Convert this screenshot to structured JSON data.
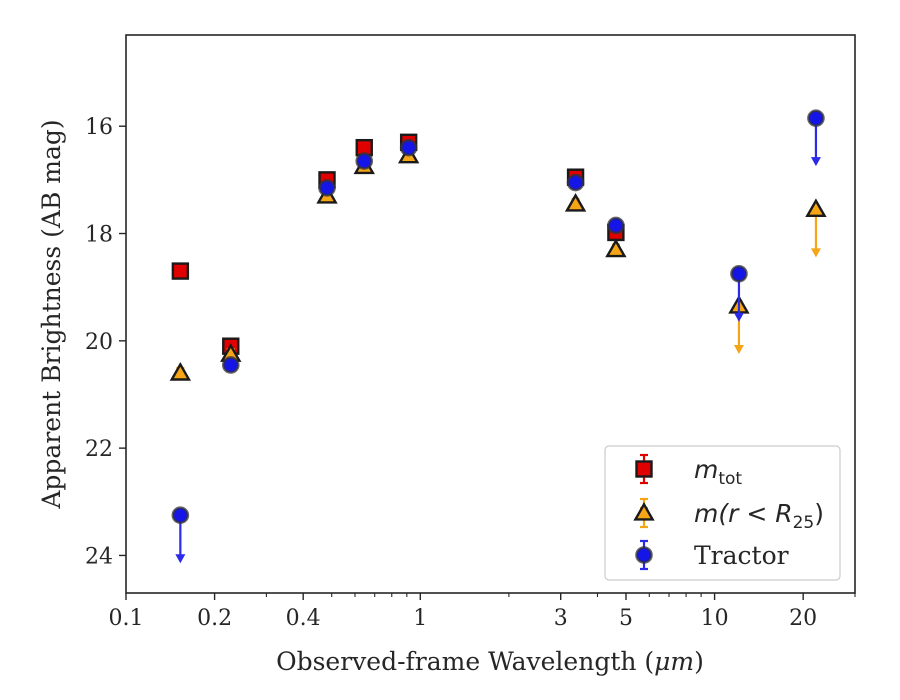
{
  "chart_data": {
    "type": "scatter",
    "title": "",
    "xlabel": "Observed-frame Wavelength (",
    "xlabel_unit": "μm",
    "xlabel_close": ")",
    "ylabel": "Apparent Brightness (AB mag)",
    "x_scale": "log",
    "xlim": [
      0.1,
      30
    ],
    "ylim": [
      14.3,
      24.7
    ],
    "y_inverted": true,
    "grid": false,
    "legend_placement": "lower-right",
    "x_ticks": [
      {
        "value": 0.1,
        "label": "0.1"
      },
      {
        "value": 0.2,
        "label": "0.2"
      },
      {
        "value": 0.4,
        "label": "0.4"
      },
      {
        "value": 1,
        "label": "1"
      },
      {
        "value": 3,
        "label": "3"
      },
      {
        "value": 5,
        "label": "5"
      },
      {
        "value": 10,
        "label": "10"
      },
      {
        "value": 20,
        "label": "20"
      }
    ],
    "y_ticks": [
      {
        "value": 16,
        "label": "16"
      },
      {
        "value": 18,
        "label": "18"
      },
      {
        "value": 20,
        "label": "20"
      },
      {
        "value": 22,
        "label": "22"
      },
      {
        "value": 24,
        "label": "24"
      }
    ],
    "series": [
      {
        "name": "m_tot",
        "legend_main": "m",
        "legend_sub": "tot",
        "marker": "square",
        "fill": "#e00000",
        "error_color": "#e00000",
        "points": [
          {
            "x": 0.153,
            "y": 18.7,
            "upper_limit": false
          },
          {
            "x": 0.227,
            "y": 20.1,
            "upper_limit": false
          },
          {
            "x": 0.482,
            "y": 17.0,
            "upper_limit": false
          },
          {
            "x": 0.645,
            "y": 16.4,
            "upper_limit": false
          },
          {
            "x": 0.913,
            "y": 16.3,
            "upper_limit": false
          },
          {
            "x": 3.37,
            "y": 16.95,
            "upper_limit": false
          },
          {
            "x": 4.62,
            "y": 17.98,
            "upper_limit": false
          }
        ]
      },
      {
        "name": "m(r<R25)",
        "legend_main": "m(r < R",
        "legend_sub": "25",
        "legend_close": ")",
        "marker": "triangle",
        "fill": "#f5a516",
        "error_color": "#f5a516",
        "points": [
          {
            "x": 0.153,
            "y": 20.6,
            "upper_limit": false
          },
          {
            "x": 0.227,
            "y": 20.25,
            "upper_limit": false
          },
          {
            "x": 0.482,
            "y": 17.3,
            "upper_limit": false
          },
          {
            "x": 0.645,
            "y": 16.75,
            "upper_limit": false
          },
          {
            "x": 0.913,
            "y": 16.55,
            "upper_limit": false
          },
          {
            "x": 3.37,
            "y": 17.45,
            "upper_limit": false
          },
          {
            "x": 4.62,
            "y": 18.3,
            "upper_limit": false
          },
          {
            "x": 12.1,
            "y": 19.35,
            "upper_limit": true
          },
          {
            "x": 22.1,
            "y": 17.55,
            "upper_limit": true
          }
        ]
      },
      {
        "name": "Tractor",
        "legend_main": "Tractor",
        "marker": "circle",
        "fill": "#1515e8",
        "error_color": "#2a2ae8",
        "points": [
          {
            "x": 0.153,
            "y": 23.25,
            "upper_limit": true
          },
          {
            "x": 0.227,
            "y": 20.45,
            "upper_limit": false
          },
          {
            "x": 0.482,
            "y": 17.15,
            "upper_limit": false
          },
          {
            "x": 0.645,
            "y": 16.65,
            "upper_limit": false
          },
          {
            "x": 0.913,
            "y": 16.4,
            "upper_limit": false
          },
          {
            "x": 3.37,
            "y": 17.05,
            "upper_limit": false
          },
          {
            "x": 4.62,
            "y": 17.85,
            "upper_limit": false
          },
          {
            "x": 12.1,
            "y": 18.75,
            "upper_limit": true
          },
          {
            "x": 22.1,
            "y": 15.85,
            "upper_limit": true
          }
        ]
      }
    ]
  }
}
